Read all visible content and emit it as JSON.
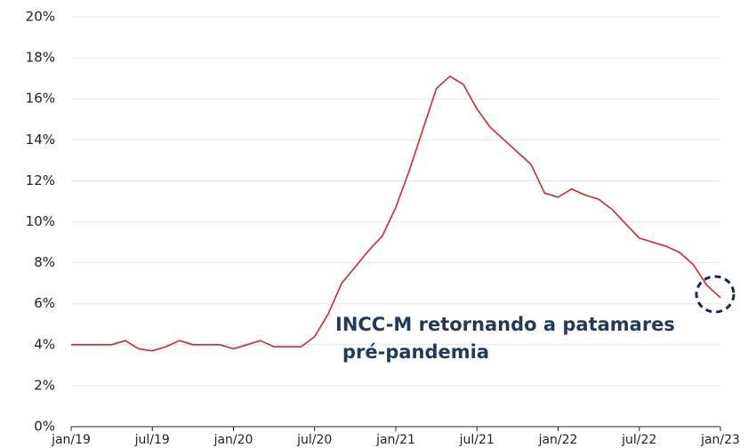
{
  "chart_data": {
    "type": "line",
    "categories": [
      "jan/19",
      null,
      null,
      null,
      null,
      null,
      "jul/19",
      null,
      null,
      null,
      null,
      null,
      "jan/20",
      null,
      null,
      null,
      null,
      null,
      "jul/20",
      null,
      null,
      null,
      null,
      null,
      "jan/21",
      null,
      null,
      null,
      null,
      null,
      "jul/21",
      null,
      null,
      null,
      null,
      null,
      "jan/22",
      null,
      null,
      null,
      null,
      null,
      "jul/22",
      null,
      null,
      null,
      null,
      null,
      "jan/23"
    ],
    "series": [
      {
        "name": "INCC-M",
        "color": "#d7262e",
        "values": [
          4.0,
          4.0,
          4.0,
          4.0,
          4.2,
          3.8,
          3.7,
          3.9,
          4.2,
          4.0,
          4.0,
          4.0,
          3.8,
          4.0,
          4.2,
          3.9,
          3.9,
          3.9,
          4.4,
          5.5,
          7.0,
          7.8,
          8.6,
          9.3,
          10.7,
          12.5,
          14.5,
          16.5,
          17.1,
          16.7,
          15.5,
          14.6,
          14.0,
          13.4,
          12.8,
          11.4,
          11.2,
          11.6,
          11.3,
          11.1,
          10.6,
          9.9,
          9.2,
          9.0,
          8.8,
          8.5,
          7.9,
          6.9,
          6.3
        ]
      }
    ],
    "ylim": [
      0,
      20
    ],
    "yticks": [
      {
        "value": 0,
        "label": "0%"
      },
      {
        "value": 2,
        "label": "2%"
      },
      {
        "value": 4,
        "label": "4%"
      },
      {
        "value": 6,
        "label": "6%"
      },
      {
        "value": 8,
        "label": "8%"
      },
      {
        "value": 10,
        "label": "10%"
      },
      {
        "value": 12,
        "label": "12%"
      },
      {
        "value": 14,
        "label": "14%"
      },
      {
        "value": 16,
        "label": "16%"
      },
      {
        "value": 18,
        "label": "18%"
      },
      {
        "value": 20,
        "label": "20%"
      }
    ],
    "grid": true,
    "annotation": [
      "INCC-M retornando a patamares",
      "pré-pandemia"
    ]
  }
}
